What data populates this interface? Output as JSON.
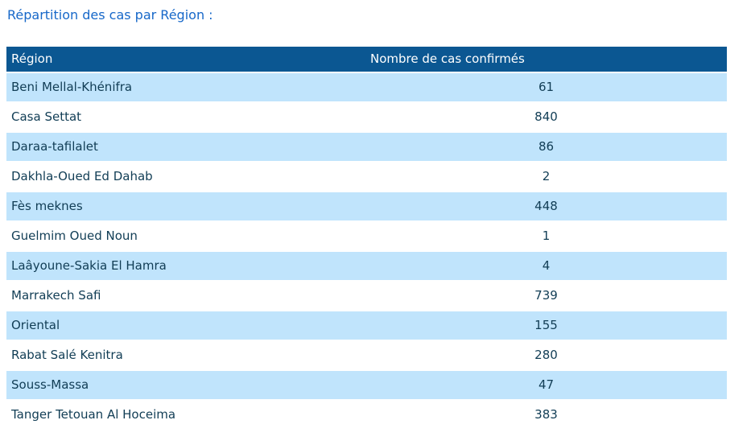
{
  "page": {
    "title": "Répartition des cas par Région :"
  },
  "table": {
    "columns": [
      "Région",
      "Nombre de cas confirmés"
    ],
    "rows": [
      {
        "region": "Beni Mellal-Khénifra",
        "cases": "61"
      },
      {
        "region": "Casa Settat",
        "cases": "840"
      },
      {
        "region": "Daraa-tafilalet",
        "cases": "86"
      },
      {
        "region": "Dakhla-Oued Ed Dahab",
        "cases": "2"
      },
      {
        "region": "Fès meknes",
        "cases": "448"
      },
      {
        "region": "Guelmim Oued Noun",
        "cases": "1"
      },
      {
        "region": "Laâyoune-Sakia El Hamra",
        "cases": "4"
      },
      {
        "region": "Marrakech Safi",
        "cases": "739"
      },
      {
        "region": "Oriental",
        "cases": "155"
      },
      {
        "region": "Rabat Salé Kenitra",
        "cases": "280"
      },
      {
        "region": "Souss-Massa",
        "cases": "47"
      },
      {
        "region": "Tanger Tetouan Al Hoceima",
        "cases": "383"
      }
    ]
  },
  "colors": {
    "title_text": "#1768C9",
    "header_bg": "#0B5792",
    "header_text": "#FFFFFF",
    "row_alt_bg": "#C0E4FC",
    "row_text": "#113D55",
    "page_bg": "#FFFFFF"
  },
  "chart_data": {
    "type": "table",
    "title": "Répartition des cas par Région",
    "columns": [
      "Région",
      "Nombre de cas confirmés"
    ],
    "categories": [
      "Beni Mellal-Khénifra",
      "Casa Settat",
      "Daraa-tafilalet",
      "Dakhla-Oued Ed Dahab",
      "Fès meknes",
      "Guelmim Oued Noun",
      "Laâyoune-Sakia El Hamra",
      "Marrakech Safi",
      "Oriental",
      "Rabat Salé Kenitra",
      "Souss-Massa",
      "Tanger Tetouan Al Hoceima"
    ],
    "values": [
      61,
      840,
      86,
      2,
      448,
      1,
      4,
      739,
      155,
      280,
      47,
      383
    ]
  }
}
